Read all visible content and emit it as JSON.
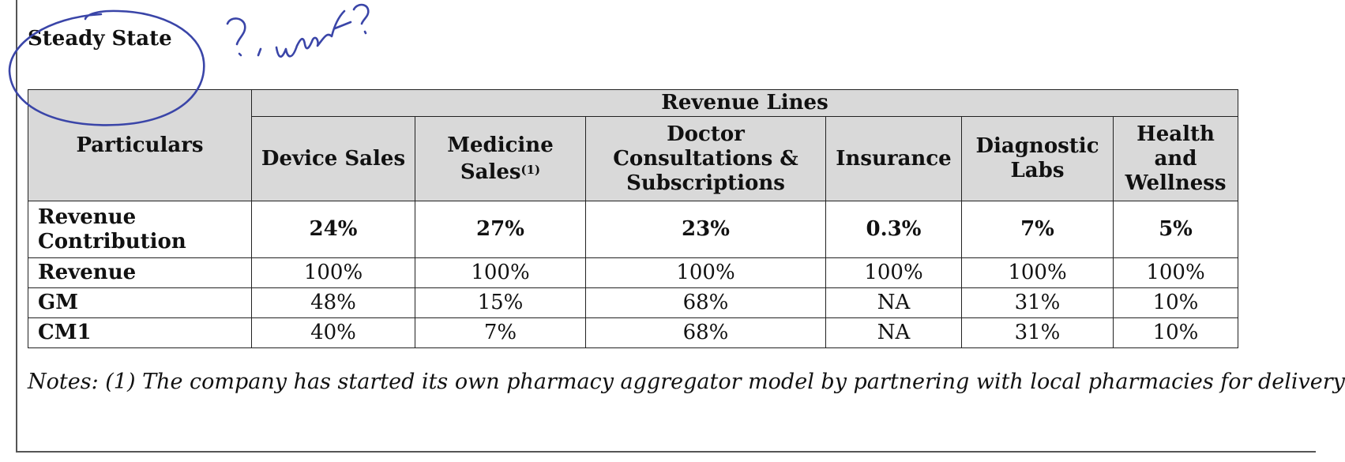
{
  "section_title": "Steady State",
  "handwriting": "?, what?",
  "table": {
    "row_header_label": "Particulars",
    "group_header": "Revenue Lines",
    "columns": [
      {
        "label": "Device Sales",
        "footnote": ""
      },
      {
        "label": "Medicine Sales",
        "footnote": "(1)"
      },
      {
        "label": "Doctor Consultations & Subscriptions",
        "footnote": ""
      },
      {
        "label": "Insurance",
        "footnote": ""
      },
      {
        "label": "Diagnostic Labs",
        "footnote": ""
      },
      {
        "label": "Health and Wellness",
        "footnote": ""
      }
    ],
    "rows": [
      {
        "label": "Revenue Contribution",
        "bold": true,
        "values": [
          "24%",
          "27%",
          "23%",
          "0.3%",
          "7%",
          "5%"
        ]
      },
      {
        "label": "Revenue",
        "bold": false,
        "values": [
          "100%",
          "100%",
          "100%",
          "100%",
          "100%",
          "100%"
        ]
      },
      {
        "label": "GM",
        "bold": false,
        "values": [
          "48%",
          "15%",
          "68%",
          "NA",
          "31%",
          "10%"
        ]
      },
      {
        "label": "CM1",
        "bold": false,
        "values": [
          "40%",
          "7%",
          "68%",
          "NA",
          "31%",
          "10%"
        ]
      }
    ]
  },
  "notes": "Notes: (1) The company has started its own pharmacy aggregator model by partnering with local pharmacies for delivery",
  "colors": {
    "header_bg": "#d9d9d9",
    "ink": "#3a45a8",
    "border": "#222222"
  }
}
